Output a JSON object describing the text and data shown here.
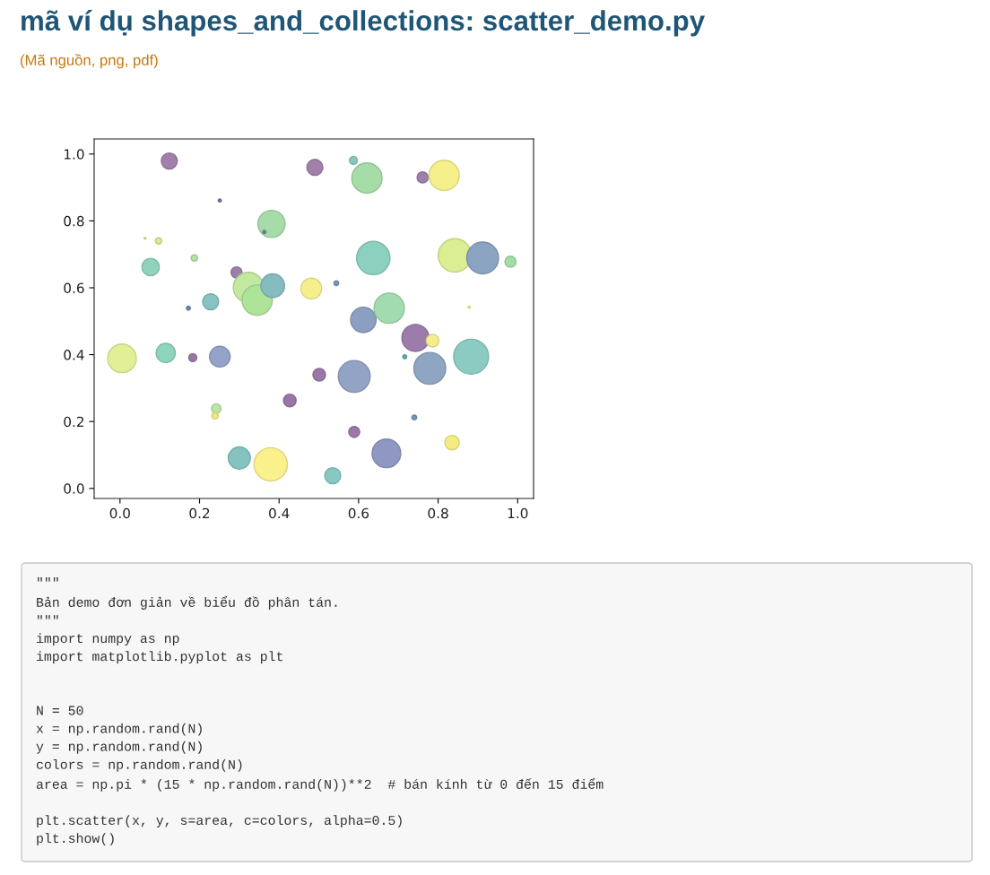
{
  "chart_data": {
    "type": "bubble",
    "title": "mã ví dụ shapes_and_collections: scatter_demo.py",
    "subtitle": "(Mã nguồn, png, pdf)",
    "annotations": [
      "\"\"\"\nBản demo đơn giản về biểu đồ phân tán.\n\"\"\"\nimport numpy as np\nimport matplotlib.pyplot as plt\n\n\nN = 50\nx = np.random.rand(N)\ny = np.random.rand(N)\ncolors = np.random.rand(N)\narea = np.pi * (15 * np.random.rand(N))**2  # bán kính từ 0 đến 15 điểm\n\nplt.scatter(x, y, s=area, c=colors, alpha=0.5)\nplt.show()"
    ],
    "x": [
      0.124,
      0.49,
      0.587,
      0.621,
      0.761,
      0.815,
      0.251,
      0.381,
      0.363,
      0.063,
      0.097,
      0.187,
      0.077,
      0.637,
      0.842,
      0.912,
      0.982,
      0.293,
      0.323,
      0.345,
      0.384,
      0.481,
      0.544,
      0.228,
      0.172,
      0.612,
      0.677,
      0.743,
      0.786,
      0.883,
      0.779,
      0.716,
      0.005,
      0.115,
      0.183,
      0.251,
      0.501,
      0.589,
      0.427,
      0.242,
      0.239,
      0.589,
      0.74,
      0.835,
      0.3,
      0.379,
      0.67,
      0.535,
      0.878
    ],
    "values": [
      0.979,
      0.96,
      0.981,
      0.928,
      0.93,
      0.936,
      0.861,
      0.791,
      0.767,
      0.748,
      0.74,
      0.689,
      0.662,
      0.689,
      0.697,
      0.689,
      0.678,
      0.646,
      0.601,
      0.563,
      0.606,
      0.598,
      0.614,
      0.558,
      0.539,
      0.504,
      0.539,
      0.45,
      0.442,
      0.394,
      0.359,
      0.394,
      0.389,
      0.405,
      0.391,
      0.394,
      0.34,
      0.335,
      0.263,
      0.239,
      0.217,
      0.169,
      0.212,
      0.137,
      0.091,
      0.072,
      0.105,
      0.038,
      0.542
    ],
    "sizes": [
      0.21,
      0.21,
      0.052,
      0.75,
      0.1,
      0.75,
      0.008,
      0.6,
      0.008,
      0.003,
      0.033,
      0.033,
      0.25,
      0.91,
      0.91,
      0.83,
      0.1,
      0.1,
      0.75,
      0.75,
      0.46,
      0.35,
      0.019,
      0.21,
      0.013,
      0.53,
      0.75,
      0.6,
      0.13,
      1,
      0.83,
      0.013,
      0.67,
      0.3,
      0.052,
      0.35,
      0.13,
      0.83,
      0.13,
      0.074,
      0.033,
      0.1,
      0.019,
      0.17,
      0.4,
      0.91,
      0.67,
      0.21,
      0.003
    ],
    "colors": [
      "#a180a9",
      "#a180a9",
      "#8cc6c2",
      "#a6dca8",
      "#9e7fab",
      "#f5ef8c",
      "#8a6a9c",
      "#a6dca8",
      "#6c86a8",
      "#e8e88a",
      "#d8ec8c",
      "#b4e2a4",
      "#8fd3bd",
      "#8cd0c0",
      "#dbee93",
      "#8aa4c2",
      "#a2dea6",
      "#9e7fab",
      "#c3e8a0",
      "#aee39a",
      "#85bcc0",
      "#f7ef8e",
      "#7b96b8",
      "#86c3c2",
      "#6f8ab0",
      "#8c9fc1",
      "#a2dcae",
      "#9b7cab",
      "#f6ee8c",
      "#8ccbc2",
      "#8fa6c3",
      "#5fb0a6",
      "#e2ef96",
      "#8ed5bb",
      "#9a76a6",
      "#95a3c8",
      "#9b78a8",
      "#93a3c6",
      "#9a76a6",
      "#bde4a4",
      "#efea80",
      "#9c78a8",
      "#7398b8",
      "#f3ec82",
      "#84c3c0",
      "#faf08c",
      "#8f98c3",
      "#87c9c2",
      "#f0ea7c"
    ],
    "marker": "circle",
    "xlim": [
      -0.065,
      1.04
    ],
    "ylim": [
      -0.03,
      1.045
    ],
    "xticks": [
      {
        "value": 0,
        "label": "0.0"
      },
      0.2,
      0.4,
      0.6,
      0.8,
      {
        "value": 1,
        "label": "1.0"
      }
    ],
    "yticks": [
      {
        "value": 0,
        "label": "0.0"
      },
      0.2,
      0.4,
      0.6,
      0.8,
      {
        "value": 1,
        "label": "1.0"
      }
    ]
  }
}
